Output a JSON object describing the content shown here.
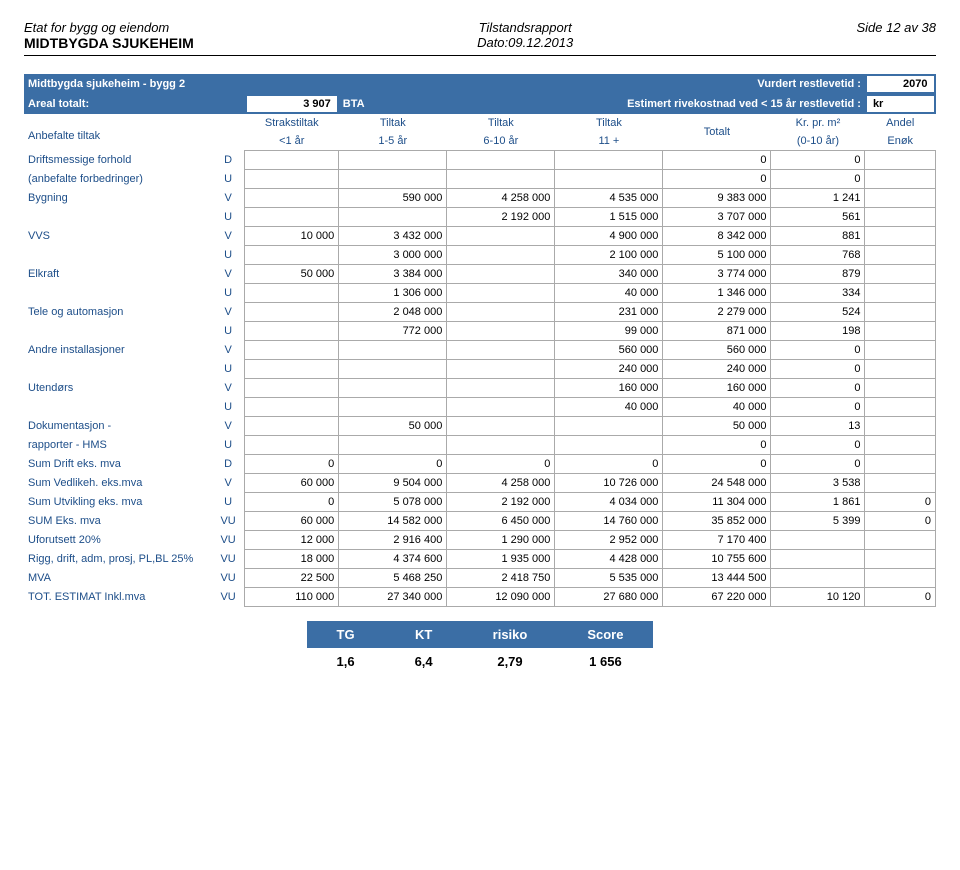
{
  "header": {
    "dept": "Etat for bygg og eiendom",
    "org": "MIDTBYGDA SJUKEHEIM",
    "report": "Tilstandsrapport",
    "date": "Dato:09.12.2013",
    "page": "Side 12 av 38"
  },
  "title_bar": {
    "left": "Midtbygda sjukeheim - bygg 2",
    "right_label": "Vurdert restlevetid :",
    "right_value": "2070",
    "areal_label": "Areal totalt:",
    "areal_value": "3 907",
    "bta": "BTA",
    "est_label": "Estimert rivekostnad ved < 15 år restlevetid :",
    "est_value": "kr"
  },
  "col_heads": {
    "anbefalte": "Anbefalte tiltak",
    "c1a": "Strakstiltak",
    "c1b": "<1 år",
    "c2a": "Tiltak",
    "c2b": "1-5 år",
    "c3a": "Tiltak",
    "c3b": "6-10 år",
    "c4a": "Tiltak",
    "c4b": "11 +",
    "c5": "Totalt",
    "c6a": "Kr. pr. m²",
    "c6b": "(0-10 år)",
    "c7a": "Andel",
    "c7b": "Enøk"
  },
  "rows": [
    {
      "label": "Driftsmessige forhold",
      "code": "D",
      "c1": "",
      "c2": "",
      "c3": "",
      "c4": "",
      "c5": "0",
      "c6": "0",
      "c7": ""
    },
    {
      "label": "(anbefalte forbedringer)",
      "code": "U",
      "c1": "",
      "c2": "",
      "c3": "",
      "c4": "",
      "c5": "0",
      "c6": "0",
      "c7": ""
    },
    {
      "label": "Bygning",
      "code": "V",
      "c1": "",
      "c2": "590 000",
      "c3": "4 258 000",
      "c4": "4 535 000",
      "c5": "9 383 000",
      "c6": "1 241",
      "c7": ""
    },
    {
      "label": "",
      "code": "U",
      "c1": "",
      "c2": "",
      "c3": "2 192 000",
      "c4": "1 515 000",
      "c5": "3 707 000",
      "c6": "561",
      "c7": ""
    },
    {
      "label": "VVS",
      "code": "V",
      "c1": "10 000",
      "c2": "3 432 000",
      "c3": "",
      "c4": "4 900 000",
      "c5": "8 342 000",
      "c6": "881",
      "c7": ""
    },
    {
      "label": "",
      "code": "U",
      "c1": "",
      "c2": "3 000 000",
      "c3": "",
      "c4": "2 100 000",
      "c5": "5 100 000",
      "c6": "768",
      "c7": ""
    },
    {
      "label": "Elkraft",
      "code": "V",
      "c1": "50 000",
      "c2": "3 384 000",
      "c3": "",
      "c4": "340 000",
      "c5": "3 774 000",
      "c6": "879",
      "c7": ""
    },
    {
      "label": "",
      "code": "U",
      "c1": "",
      "c2": "1 306 000",
      "c3": "",
      "c4": "40 000",
      "c5": "1 346 000",
      "c6": "334",
      "c7": ""
    },
    {
      "label": "Tele og automasjon",
      "code": "V",
      "c1": "",
      "c2": "2 048 000",
      "c3": "",
      "c4": "231 000",
      "c5": "2 279 000",
      "c6": "524",
      "c7": ""
    },
    {
      "label": "",
      "code": "U",
      "c1": "",
      "c2": "772 000",
      "c3": "",
      "c4": "99 000",
      "c5": "871 000",
      "c6": "198",
      "c7": ""
    },
    {
      "label": "Andre installasjoner",
      "code": "V",
      "c1": "",
      "c2": "",
      "c3": "",
      "c4": "560 000",
      "c5": "560 000",
      "c6": "0",
      "c7": ""
    },
    {
      "label": "",
      "code": "U",
      "c1": "",
      "c2": "",
      "c3": "",
      "c4": "240 000",
      "c5": "240 000",
      "c6": "0",
      "c7": ""
    },
    {
      "label": "Utendørs",
      "code": "V",
      "c1": "",
      "c2": "",
      "c3": "",
      "c4": "160 000",
      "c5": "160 000",
      "c6": "0",
      "c7": ""
    },
    {
      "label": "",
      "code": "U",
      "c1": "",
      "c2": "",
      "c3": "",
      "c4": "40 000",
      "c5": "40 000",
      "c6": "0",
      "c7": ""
    },
    {
      "label": "Dokumentasjon -",
      "code": "V",
      "c1": "",
      "c2": "50 000",
      "c3": "",
      "c4": "",
      "c5": "50 000",
      "c6": "13",
      "c7": ""
    },
    {
      "label": "rapporter - HMS",
      "code": "U",
      "c1": "",
      "c2": "",
      "c3": "",
      "c4": "",
      "c5": "0",
      "c6": "0",
      "c7": ""
    },
    {
      "label": "Sum Drift eks. mva",
      "code": "D",
      "c1": "0",
      "c2": "0",
      "c3": "0",
      "c4": "0",
      "c5": "0",
      "c6": "0",
      "c7": ""
    },
    {
      "label": "Sum Vedlikeh. eks.mva",
      "code": "V",
      "c1": "60 000",
      "c2": "9 504 000",
      "c3": "4 258 000",
      "c4": "10 726 000",
      "c5": "24 548 000",
      "c6": "3 538",
      "c7": ""
    },
    {
      "label": "Sum Utvikling eks. mva",
      "code": "U",
      "c1": "0",
      "c2": "5 078 000",
      "c3": "2 192 000",
      "c4": "4 034 000",
      "c5": "11 304 000",
      "c6": "1 861",
      "c7": "0"
    },
    {
      "label": "SUM Eks. mva",
      "code": "VU",
      "c1": "60 000",
      "c2": "14 582 000",
      "c3": "6 450 000",
      "c4": "14 760 000",
      "c5": "35 852 000",
      "c6": "5 399",
      "c7": "0"
    },
    {
      "label": "Uforutsett 20%",
      "code": "VU",
      "c1": "12 000",
      "c2": "2 916 400",
      "c3": "1 290 000",
      "c4": "2 952 000",
      "c5": "7 170 400",
      "c6": "",
      "c7": ""
    },
    {
      "label": "Rigg, drift, adm, prosj, PL,BL 25%",
      "code": "VU",
      "c1": "18 000",
      "c2": "4 374 600",
      "c3": "1 935 000",
      "c4": "4 428 000",
      "c5": "10 755 600",
      "c6": "",
      "c7": ""
    },
    {
      "label": "MVA",
      "code": "VU",
      "c1": "22 500",
      "c2": "5 468 250",
      "c3": "2 418 750",
      "c4": "5 535 000",
      "c5": "13 444 500",
      "c6": "",
      "c7": ""
    },
    {
      "label": "TOT. ESTIMAT Inkl.mva",
      "code": "VU",
      "c1": "110 000",
      "c2": "27 340 000",
      "c3": "12 090 000",
      "c4": "27 680 000",
      "c5": "67 220 000",
      "c6": "10 120",
      "c7": "0"
    }
  ],
  "tg": {
    "h1": "TG",
    "h2": "KT",
    "h3": "risiko",
    "h4": "Score",
    "v1": "1,6",
    "v2": "6,4",
    "v3": "2,79",
    "v4": "1 656"
  }
}
